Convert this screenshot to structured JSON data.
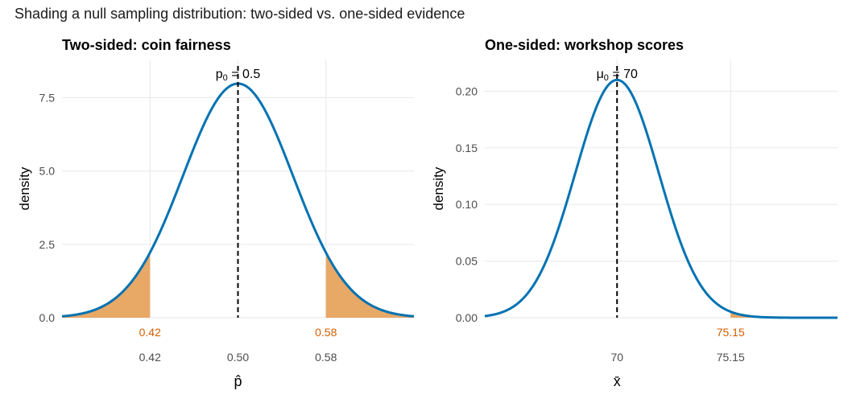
{
  "title": "Shading a null sampling distribution: two-sided vs. one-sided evidence",
  "chart_data": [
    {
      "type": "area",
      "title": "Two-sided: coin fairness",
      "xlabel": "p̂",
      "ylabel": "density",
      "grid": true,
      "xlim": [
        0.34,
        0.66
      ],
      "ylim": [
        0,
        8.8
      ],
      "x_ticks": [
        0.42,
        0.5,
        0.58
      ],
      "x_tick_labels": [
        "0.42",
        "0.50",
        "0.58"
      ],
      "y_ticks": [
        0,
        2.5,
        5,
        7.5
      ],
      "y_tick_labels": [
        "0.0",
        "2.5",
        "5.0",
        "7.5"
      ],
      "distribution": {
        "family": "normal",
        "mean": 0.5,
        "sd": 0.05,
        "x_range": [
          0.34,
          0.66
        ]
      },
      "reference_line": {
        "x": 0.5,
        "label_base": "p",
        "label_sub": "0",
        "label_rest": " = 0.5"
      },
      "shaded_tails": [
        {
          "from": 0.34,
          "to": 0.42
        },
        {
          "from": 0.58,
          "to": 0.66
        }
      ],
      "tail_labels": [
        {
          "x": 0.42,
          "text": "0.42"
        },
        {
          "x": 0.58,
          "text": "0.58"
        }
      ],
      "colors": {
        "curve": "#0072B2",
        "shade": "#E69F55",
        "tail_label": "#D55E00"
      }
    },
    {
      "type": "area",
      "title": "One-sided: workshop scores",
      "xlabel": "x̄",
      "ylabel": "density",
      "grid": true,
      "xlim": [
        64,
        80
      ],
      "ylim": [
        0,
        0.228
      ],
      "x_ticks": [
        70,
        75.15
      ],
      "x_tick_labels": [
        "70",
        "75.15"
      ],
      "y_ticks": [
        0,
        0.05,
        0.1,
        0.15,
        0.2
      ],
      "y_tick_labels": [
        "0.00",
        "0.05",
        "0.10",
        "0.15",
        "0.20"
      ],
      "distribution": {
        "family": "normal",
        "mean": 70,
        "sd": 1.9,
        "x_range": [
          64,
          80
        ]
      },
      "reference_line": {
        "x": 70,
        "label_base": "μ",
        "label_sub": "0",
        "label_rest": " = 70"
      },
      "shaded_tails": [
        {
          "from": 75.15,
          "to": 80
        }
      ],
      "tail_labels": [
        {
          "x": 75.15,
          "text": "75.15"
        }
      ],
      "colors": {
        "curve": "#0072B2",
        "shade": "#E69F55",
        "tail_label": "#D55E00"
      }
    }
  ]
}
